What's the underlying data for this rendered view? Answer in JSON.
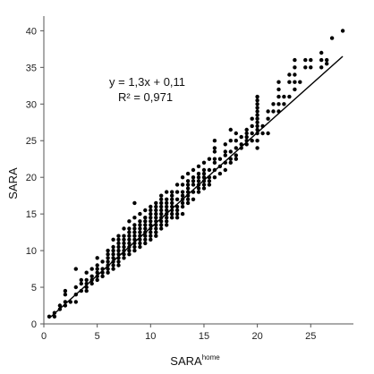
{
  "chart_data": {
    "type": "scatter",
    "xlabel": "SARA",
    "xlabel_superscript": "home",
    "ylabel": "SARA",
    "xlim": [
      0,
      29
    ],
    "ylim": [
      0,
      42
    ],
    "x_ticks": [
      0,
      5,
      10,
      15,
      20,
      25
    ],
    "y_ticks": [
      0,
      5,
      10,
      15,
      20,
      25,
      30,
      35,
      40
    ],
    "grid": false,
    "equation": "y = 1,3x + 0,11",
    "r_squared": "R² = 0,971",
    "trendline": {
      "slope": 1.3,
      "intercept": 0.11,
      "x_start": 0.5,
      "x_end": 28
    },
    "points": [
      [
        0.5,
        1
      ],
      [
        1,
        1
      ],
      [
        1,
        1.5
      ],
      [
        1.5,
        2
      ],
      [
        1.5,
        2.5
      ],
      [
        2,
        2.5
      ],
      [
        2,
        3
      ],
      [
        2,
        4
      ],
      [
        2,
        4.5
      ],
      [
        2.5,
        3
      ],
      [
        3,
        3
      ],
      [
        3,
        4
      ],
      [
        3,
        5
      ],
      [
        3,
        7.5
      ],
      [
        3.5,
        4.5
      ],
      [
        3.5,
        5.5
      ],
      [
        3.5,
        6
      ],
      [
        4,
        4.5
      ],
      [
        4,
        5
      ],
      [
        4,
        5.5
      ],
      [
        4,
        6
      ],
      [
        4,
        7
      ],
      [
        4.5,
        5.5
      ],
      [
        4.5,
        6
      ],
      [
        4.5,
        6.5
      ],
      [
        4.5,
        7.5
      ],
      [
        5,
        6
      ],
      [
        5,
        6.5
      ],
      [
        5,
        7
      ],
      [
        5,
        7.5
      ],
      [
        5,
        8
      ],
      [
        5,
        9
      ],
      [
        5.5,
        6.5
      ],
      [
        5.5,
        7
      ],
      [
        5.5,
        7.5
      ],
      [
        5.5,
        8.5
      ],
      [
        6,
        7
      ],
      [
        6,
        7.5
      ],
      [
        6,
        8
      ],
      [
        6,
        8.5
      ],
      [
        6,
        9
      ],
      [
        6,
        9.5
      ],
      [
        6,
        10
      ],
      [
        6.5,
        7.5
      ],
      [
        6.5,
        8
      ],
      [
        6.5,
        8.5
      ],
      [
        6.5,
        9
      ],
      [
        6.5,
        9.5
      ],
      [
        6.5,
        10
      ],
      [
        6.5,
        10.5
      ],
      [
        6.5,
        11.5
      ],
      [
        7,
        8
      ],
      [
        7,
        8.5
      ],
      [
        7,
        9
      ],
      [
        7,
        9.5
      ],
      [
        7,
        10
      ],
      [
        7,
        10.5
      ],
      [
        7,
        11
      ],
      [
        7,
        11.5
      ],
      [
        7,
        12
      ],
      [
        7.5,
        9
      ],
      [
        7.5,
        9.5
      ],
      [
        7.5,
        10
      ],
      [
        7.5,
        10.5
      ],
      [
        7.5,
        11
      ],
      [
        7.5,
        11.5
      ],
      [
        7.5,
        12
      ],
      [
        7.5,
        13
      ],
      [
        8,
        9.5
      ],
      [
        8,
        10
      ],
      [
        8,
        10.5
      ],
      [
        8,
        11
      ],
      [
        8,
        11.5
      ],
      [
        8,
        12
      ],
      [
        8,
        12.5
      ],
      [
        8,
        13
      ],
      [
        8,
        14
      ],
      [
        8.5,
        10
      ],
      [
        8.5,
        10.5
      ],
      [
        8.5,
        11
      ],
      [
        8.5,
        11.5
      ],
      [
        8.5,
        12
      ],
      [
        8.5,
        12.5
      ],
      [
        8.5,
        13
      ],
      [
        8.5,
        13.5
      ],
      [
        8.5,
        14.5
      ],
      [
        8.5,
        16.5
      ],
      [
        9,
        10.5
      ],
      [
        9,
        11
      ],
      [
        9,
        11.5
      ],
      [
        9,
        12
      ],
      [
        9,
        12.5
      ],
      [
        9,
        13
      ],
      [
        9,
        13.5
      ],
      [
        9,
        14
      ],
      [
        9,
        15
      ],
      [
        9.5,
        11
      ],
      [
        9.5,
        11.5
      ],
      [
        9.5,
        12
      ],
      [
        9.5,
        12.5
      ],
      [
        9.5,
        13
      ],
      [
        9.5,
        13.5
      ],
      [
        9.5,
        14
      ],
      [
        9.5,
        14.5
      ],
      [
        9.5,
        15.5
      ],
      [
        10,
        11.5
      ],
      [
        10,
        12
      ],
      [
        10,
        12.5
      ],
      [
        10,
        13
      ],
      [
        10,
        13.5
      ],
      [
        10,
        14
      ],
      [
        10,
        14.5
      ],
      [
        10,
        15
      ],
      [
        10,
        15.5
      ],
      [
        10,
        16
      ],
      [
        10.5,
        12
      ],
      [
        10.5,
        12.5
      ],
      [
        10.5,
        13
      ],
      [
        10.5,
        13.5
      ],
      [
        10.5,
        14
      ],
      [
        10.5,
        14.5
      ],
      [
        10.5,
        15
      ],
      [
        10.5,
        15.5
      ],
      [
        10.5,
        16
      ],
      [
        10.5,
        16.5
      ],
      [
        11,
        13
      ],
      [
        11,
        13.5
      ],
      [
        11,
        14
      ],
      [
        11,
        14.5
      ],
      [
        11,
        15
      ],
      [
        11,
        15.5
      ],
      [
        11,
        16
      ],
      [
        11,
        16.5
      ],
      [
        11,
        17
      ],
      [
        11,
        17.5
      ],
      [
        11.5,
        13.5
      ],
      [
        11.5,
        14
      ],
      [
        11.5,
        14.5
      ],
      [
        11.5,
        15
      ],
      [
        11.5,
        15.5
      ],
      [
        11.5,
        16
      ],
      [
        11.5,
        16.5
      ],
      [
        11.5,
        17
      ],
      [
        11.5,
        18
      ],
      [
        12,
        14.5
      ],
      [
        12,
        15
      ],
      [
        12,
        15.5
      ],
      [
        12,
        16
      ],
      [
        12,
        16.5
      ],
      [
        12,
        17
      ],
      [
        12,
        17.5
      ],
      [
        12,
        18
      ],
      [
        12.5,
        14.5
      ],
      [
        12.5,
        15
      ],
      [
        12.5,
        15.5
      ],
      [
        12.5,
        16
      ],
      [
        12.5,
        17
      ],
      [
        12.5,
        18
      ],
      [
        12.5,
        19
      ],
      [
        13,
        15
      ],
      [
        13,
        16
      ],
      [
        13,
        16.5
      ],
      [
        13,
        17
      ],
      [
        13,
        17.5
      ],
      [
        13,
        18
      ],
      [
        13,
        19
      ],
      [
        13,
        20
      ],
      [
        13.5,
        16.5
      ],
      [
        13.5,
        17
      ],
      [
        13.5,
        17.5
      ],
      [
        13.5,
        18
      ],
      [
        13.5,
        18.5
      ],
      [
        13.5,
        19
      ],
      [
        13.5,
        19.5
      ],
      [
        13.5,
        20.5
      ],
      [
        14,
        17
      ],
      [
        14,
        18
      ],
      [
        14,
        19
      ],
      [
        14,
        19.5
      ],
      [
        14,
        20
      ],
      [
        14,
        21
      ],
      [
        14.5,
        18
      ],
      [
        14.5,
        18.5
      ],
      [
        14.5,
        19
      ],
      [
        14.5,
        19.5
      ],
      [
        14.5,
        20
      ],
      [
        14.5,
        20.5
      ],
      [
        14.5,
        21.5
      ],
      [
        15,
        18.5
      ],
      [
        15,
        19
      ],
      [
        15,
        19.5
      ],
      [
        15,
        20
      ],
      [
        15,
        20.5
      ],
      [
        15,
        21
      ],
      [
        15,
        22
      ],
      [
        15.5,
        19
      ],
      [
        15.5,
        19.5
      ],
      [
        15.5,
        20
      ],
      [
        15.5,
        21
      ],
      [
        15.5,
        22.5
      ],
      [
        16,
        20
      ],
      [
        16,
        21
      ],
      [
        16,
        22
      ],
      [
        16,
        22.5
      ],
      [
        16,
        23.5
      ],
      [
        16,
        24
      ],
      [
        16,
        25
      ],
      [
        16.5,
        20.5
      ],
      [
        16.5,
        21.5
      ],
      [
        16.5,
        22.5
      ],
      [
        17,
        21
      ],
      [
        17,
        22
      ],
      [
        17,
        23
      ],
      [
        17,
        23.5
      ],
      [
        17,
        24.5
      ],
      [
        17.5,
        22
      ],
      [
        17.5,
        22.5
      ],
      [
        17.5,
        23.5
      ],
      [
        17.5,
        25
      ],
      [
        17.5,
        26.5
      ],
      [
        18,
        22.5
      ],
      [
        18,
        23
      ],
      [
        18,
        24
      ],
      [
        18,
        25
      ],
      [
        18,
        26
      ],
      [
        18.5,
        24
      ],
      [
        18.5,
        24.5
      ],
      [
        18.5,
        25.5
      ],
      [
        19,
        24.5
      ],
      [
        19,
        25
      ],
      [
        19,
        25.5
      ],
      [
        19,
        26
      ],
      [
        19,
        26.5
      ],
      [
        19.5,
        25
      ],
      [
        19.5,
        26
      ],
      [
        19.5,
        27
      ],
      [
        19.5,
        28
      ],
      [
        20,
        24
      ],
      [
        20,
        25
      ],
      [
        20,
        26
      ],
      [
        20,
        26.5
      ],
      [
        20,
        27
      ],
      [
        20,
        27.5
      ],
      [
        20,
        28
      ],
      [
        20,
        28.5
      ],
      [
        20,
        29
      ],
      [
        20,
        29.5
      ],
      [
        20,
        30
      ],
      [
        20,
        30.5
      ],
      [
        20,
        31
      ],
      [
        20.5,
        26
      ],
      [
        20.5,
        27
      ],
      [
        21,
        26
      ],
      [
        21,
        28
      ],
      [
        21,
        29
      ],
      [
        21.5,
        29
      ],
      [
        21.5,
        30
      ],
      [
        22,
        29
      ],
      [
        22,
        30
      ],
      [
        22,
        31
      ],
      [
        22,
        32
      ],
      [
        22,
        33
      ],
      [
        22.5,
        30
      ],
      [
        22.5,
        31
      ],
      [
        23,
        31
      ],
      [
        23,
        33
      ],
      [
        23,
        34
      ],
      [
        23.5,
        32
      ],
      [
        23.5,
        33
      ],
      [
        23.5,
        34
      ],
      [
        23.5,
        35
      ],
      [
        23.5,
        36
      ],
      [
        24,
        33
      ],
      [
        24.5,
        35
      ],
      [
        24.5,
        36
      ],
      [
        25,
        35
      ],
      [
        25,
        36
      ],
      [
        26,
        35
      ],
      [
        26,
        36
      ],
      [
        26,
        37
      ],
      [
        26.5,
        35.5
      ],
      [
        26.5,
        36
      ],
      [
        27,
        39
      ],
      [
        28,
        40
      ]
    ]
  }
}
